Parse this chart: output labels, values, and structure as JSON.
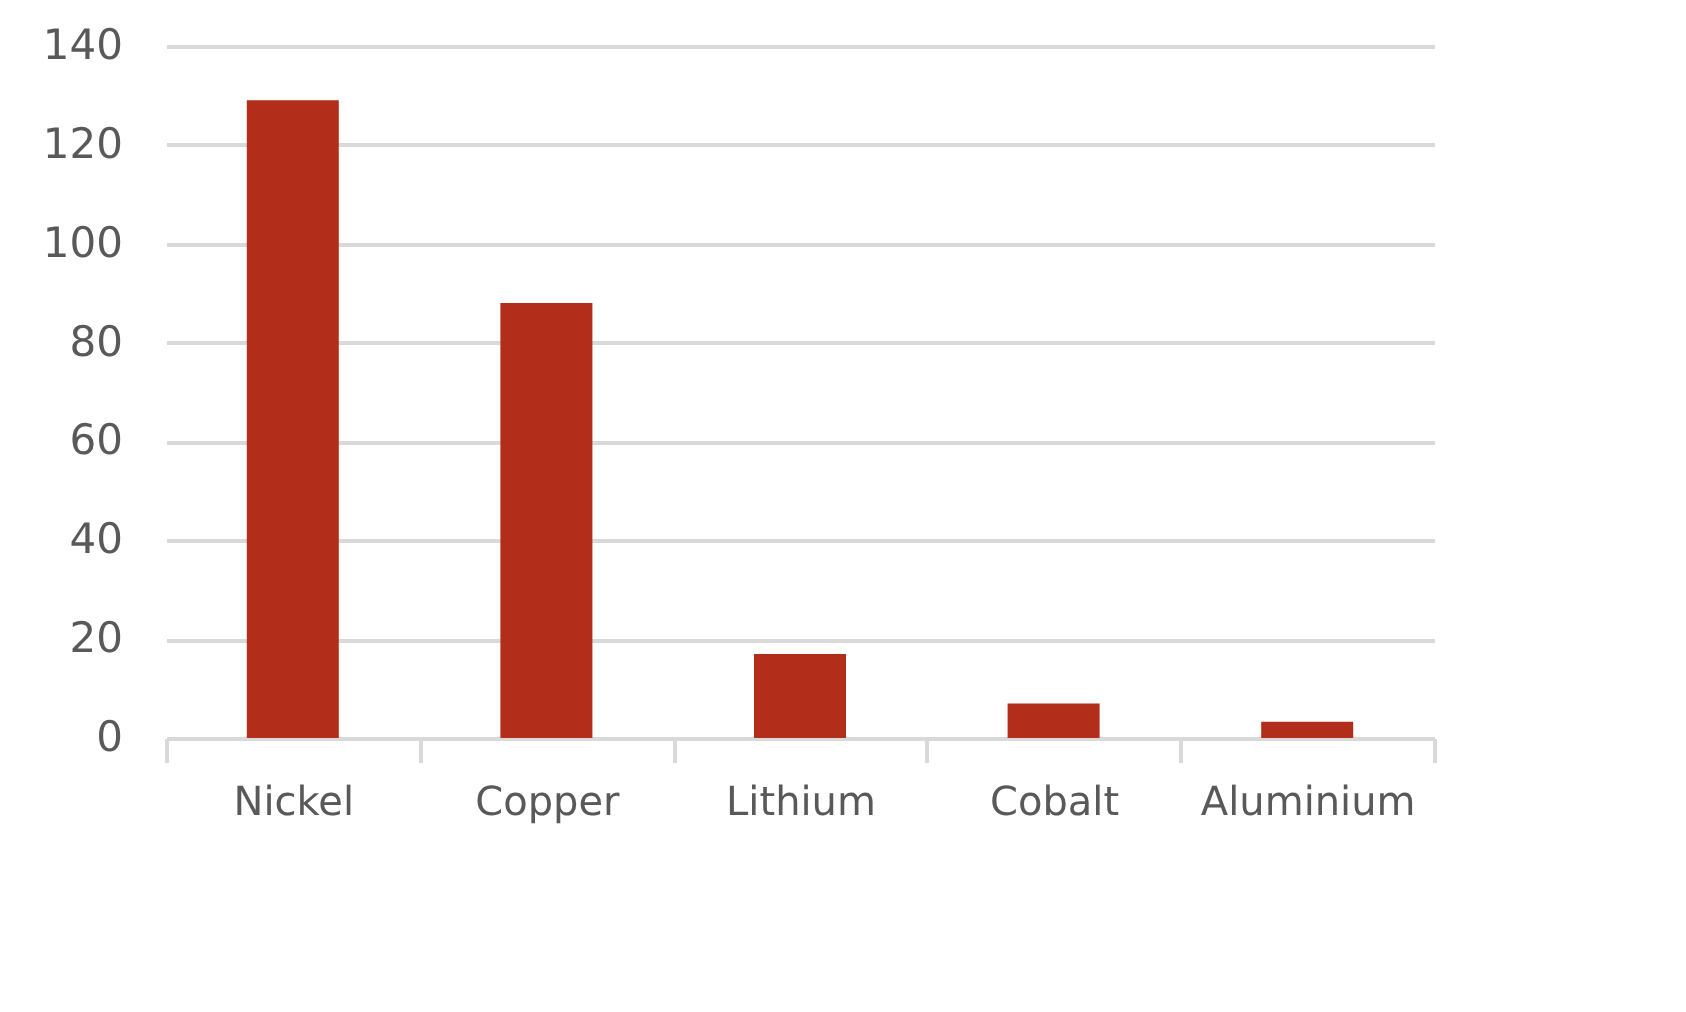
{
  "chart_data": {
    "type": "bar",
    "categories": [
      "Nickel",
      "Copper",
      "Lithium",
      "Cobalt",
      "Aluminium"
    ],
    "values": [
      129,
      88,
      17,
      7,
      3.3
    ],
    "color": "#b22d1a",
    "ylim": [
      0,
      140
    ],
    "yticks": [
      0,
      20,
      40,
      60,
      80,
      100,
      120,
      140
    ],
    "grid": "y"
  }
}
